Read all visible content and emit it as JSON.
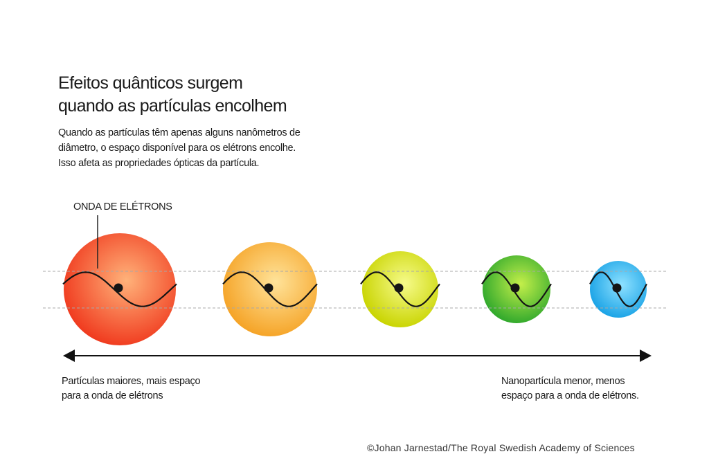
{
  "title": {
    "line1": "Efeitos quânticos surgem",
    "line2": "quando as partículas encolhem"
  },
  "intro": {
    "line1": "Quando as partículas têm apenas alguns nanômetros de",
    "line2": "diâmetro, o espaço disponível para os elétrons encolhe.",
    "line3": "Isso afeta as propriedades ópticas da partícula."
  },
  "wave_label": "ONDA DE ELÉTRONS",
  "particles": [
    {
      "name": "red",
      "color": "#f03a1e",
      "highlight": "#ffb27a"
    },
    {
      "name": "orange",
      "color": "#f5a326",
      "highlight": "#ffe39a"
    },
    {
      "name": "yellow",
      "color": "#c9d400",
      "highlight": "#f6fb8a"
    },
    {
      "name": "green",
      "color": "#2fa82c",
      "highlight": "#c4ef4a"
    },
    {
      "name": "blue",
      "color": "#1aa3e6",
      "highlight": "#8ee1ff"
    }
  ],
  "captions": {
    "left": {
      "line1": "Partículas maiores, mais espaço",
      "line2": "para a onda de elétrons"
    },
    "right": {
      "line1": "Nanopartícula menor, menos",
      "line2": "espaço para a onda de elétrons."
    }
  },
  "credit": "©Johan Jarnestad/The Royal Swedish Academy of Sciences"
}
